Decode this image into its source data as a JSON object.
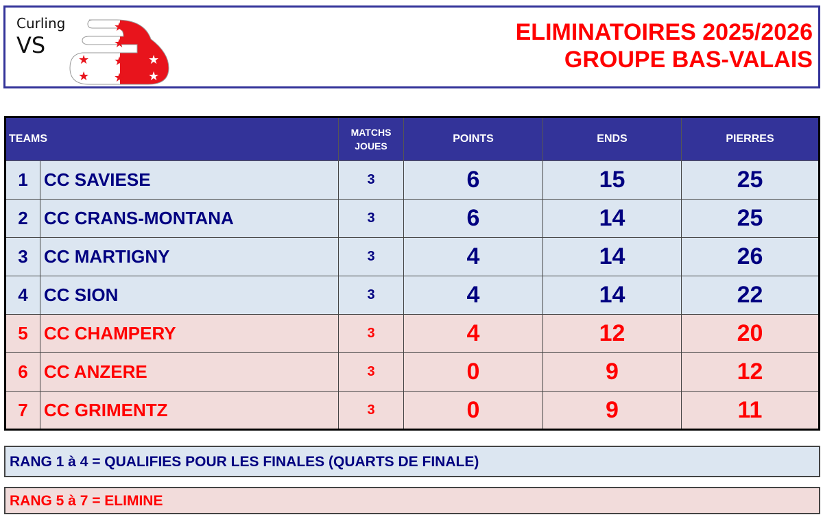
{
  "logo": {
    "line1": "Curling",
    "line2": "VS"
  },
  "title": {
    "line1": "ELIMINATOIRES 2025/2026",
    "line2": "GROUPE BAS-VALAIS"
  },
  "colors": {
    "header": "#333399",
    "qualified_text": "#000080",
    "qualified_bg": "#dce6f1",
    "eliminated_text": "#ff0000",
    "eliminated_bg": "#f2dcdb"
  },
  "table": {
    "headers": {
      "teams": "TEAMS",
      "matchs_line1": "MATCHS",
      "matchs_line2": "JOUES",
      "points": "POINTS",
      "ends": "ENDS",
      "pierres": "PIERRES"
    },
    "rows": [
      {
        "rank": "1",
        "team": "CC SAVIESE",
        "matchs": "3",
        "points": "6",
        "ends": "15",
        "pierres": "25",
        "status": "qualified"
      },
      {
        "rank": "2",
        "team": "CC CRANS-MONTANA",
        "matchs": "3",
        "points": "6",
        "ends": "14",
        "pierres": "25",
        "status": "qualified"
      },
      {
        "rank": "3",
        "team": "CC MARTIGNY",
        "matchs": "3",
        "points": "4",
        "ends": "14",
        "pierres": "26",
        "status": "qualified"
      },
      {
        "rank": "4",
        "team": "CC SION",
        "matchs": "3",
        "points": "4",
        "ends": "14",
        "pierres": "22",
        "status": "qualified"
      },
      {
        "rank": "5",
        "team": "CC CHAMPERY",
        "matchs": "3",
        "points": "4",
        "ends": "12",
        "pierres": "20",
        "status": "eliminated"
      },
      {
        "rank": "6",
        "team": "CC ANZERE",
        "matchs": "3",
        "points": "0",
        "ends": "9",
        "pierres": "12",
        "status": "eliminated"
      },
      {
        "rank": "7",
        "team": "CC GRIMENTZ",
        "matchs": "3",
        "points": "0",
        "ends": "9",
        "pierres": "11",
        "status": "eliminated"
      }
    ]
  },
  "notes": {
    "qualified": "RANG  1 à 4 = QUALIFIES POUR LES FINALES (QUARTS DE FINALE)",
    "eliminated": "RANG  5 à 7 = ELIMINE"
  }
}
